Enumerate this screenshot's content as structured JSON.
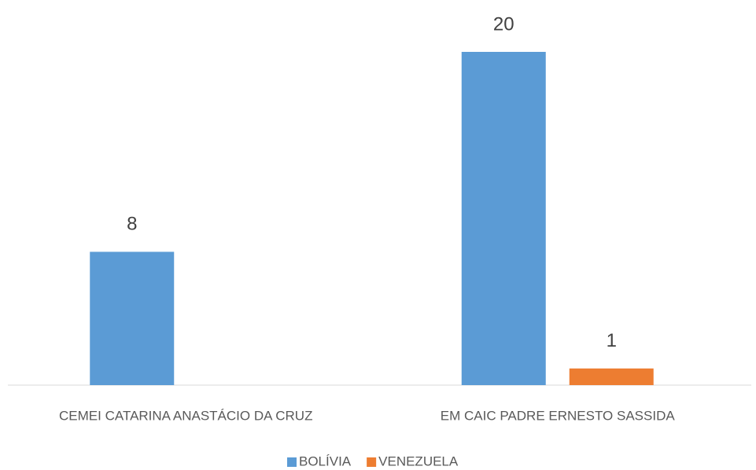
{
  "chart_data": {
    "type": "bar",
    "categories": [
      "CEMEI CATARINA ANASTÁCIO DA CRUZ",
      "EM CAIC PADRE ERNESTO SASSIDA"
    ],
    "series": [
      {
        "name": "BOLÍVIA",
        "color": "#5b9bd5",
        "values": [
          8,
          20
        ]
      },
      {
        "name": "VENEZUELA",
        "color": "#ed7d31",
        "values": [
          null,
          1
        ]
      }
    ],
    "legend": "bottom"
  }
}
